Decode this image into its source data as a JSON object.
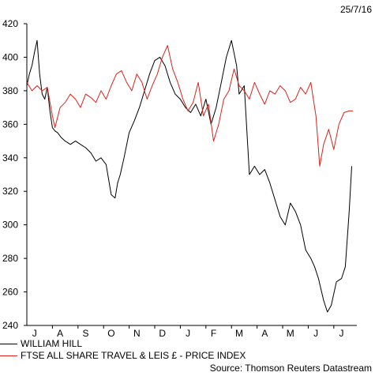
{
  "date_label": "25/7/16",
  "source_label": "Source: Thomson Reuters Datastream",
  "chart_data": {
    "type": "line",
    "title": "",
    "xlabel": "",
    "ylabel": "",
    "ylim": [
      240,
      420
    ],
    "yticks": [
      240,
      260,
      280,
      300,
      320,
      340,
      360,
      380,
      400,
      420
    ],
    "xticks": [
      "J",
      "A",
      "S",
      "O",
      "N",
      "D",
      "J",
      "F",
      "M",
      "A",
      "M",
      "J",
      "J"
    ],
    "xticks_pos": [
      0.3,
      1.3,
      2.3,
      3.3,
      4.3,
      5.3,
      6.3,
      7.3,
      8.3,
      9.3,
      10.3,
      11.3,
      12.3
    ],
    "xlim": [
      0,
      12.9
    ],
    "legend_position": "bottom-left",
    "series": [
      {
        "name": "WILLIAM HILL",
        "color": "#000000",
        "x": [
          0,
          0.1,
          0.2,
          0.3,
          0.4,
          0.5,
          0.6,
          0.7,
          0.8,
          0.9,
          1.0,
          1.1,
          1.2,
          1.35,
          1.5,
          1.7,
          1.9,
          2.1,
          2.3,
          2.5,
          2.7,
          2.9,
          3.1,
          3.3,
          3.45,
          3.55,
          3.65,
          3.8,
          4.0,
          4.2,
          4.4,
          4.6,
          4.8,
          5.0,
          5.2,
          5.4,
          5.6,
          5.8,
          6.0,
          6.2,
          6.4,
          6.6,
          6.8,
          7.0,
          7.2,
          7.4,
          7.6,
          7.8,
          8.0,
          8.2,
          8.3,
          8.5,
          8.7,
          8.9,
          9.1,
          9.3,
          9.5,
          9.7,
          9.9,
          10.1,
          10.3,
          10.5,
          10.7,
          10.9,
          11.1,
          11.25,
          11.4,
          11.6,
          11.75,
          11.9,
          12.1,
          12.3,
          12.45,
          12.6,
          12.7
        ],
        "values": [
          383,
          390,
          395,
          403,
          410,
          390,
          378,
          375,
          382,
          368,
          358,
          356,
          355,
          352,
          350,
          348,
          350,
          348,
          346,
          343,
          338,
          340,
          336,
          318,
          316,
          325,
          330,
          340,
          355,
          362,
          370,
          380,
          390,
          398,
          400,
          395,
          385,
          378,
          375,
          370,
          367,
          372,
          365,
          375,
          360,
          370,
          385,
          400,
          410,
          395,
          378,
          383,
          330,
          335,
          330,
          333,
          325,
          315,
          305,
          300,
          313,
          308,
          300,
          285,
          280,
          275,
          268,
          255,
          248,
          252,
          266,
          268,
          275,
          308,
          335
        ]
      },
      {
        "name": "FTSE ALL SHARE TRAVEL & LEIS £ - PRICE INDEX",
        "color": "#e0201b",
        "x": [
          0,
          0.2,
          0.4,
          0.6,
          0.8,
          1.0,
          1.1,
          1.3,
          1.5,
          1.7,
          1.9,
          2.1,
          2.3,
          2.5,
          2.7,
          2.9,
          3.1,
          3.3,
          3.5,
          3.7,
          3.9,
          4.1,
          4.3,
          4.5,
          4.7,
          4.9,
          5.1,
          5.3,
          5.5,
          5.7,
          5.9,
          6.1,
          6.3,
          6.5,
          6.7,
          6.9,
          7.1,
          7.3,
          7.5,
          7.7,
          7.9,
          8.1,
          8.3,
          8.5,
          8.7,
          8.9,
          9.1,
          9.3,
          9.5,
          9.7,
          9.9,
          10.1,
          10.3,
          10.5,
          10.7,
          10.9,
          11.1,
          11.2,
          11.3,
          11.45,
          11.6,
          11.8,
          12.0,
          12.2,
          12.4,
          12.6,
          12.75
        ],
        "values": [
          385,
          380,
          383,
          380,
          382,
          365,
          358,
          370,
          373,
          378,
          375,
          370,
          378,
          376,
          373,
          380,
          375,
          383,
          390,
          392,
          385,
          380,
          390,
          385,
          375,
          383,
          390,
          400,
          407,
          393,
          385,
          375,
          368,
          373,
          385,
          365,
          372,
          350,
          360,
          375,
          380,
          393,
          383,
          380,
          375,
          385,
          378,
          372,
          380,
          378,
          383,
          380,
          373,
          375,
          382,
          378,
          385,
          375,
          365,
          335,
          348,
          357,
          345,
          360,
          367,
          368,
          368
        ]
      }
    ]
  }
}
